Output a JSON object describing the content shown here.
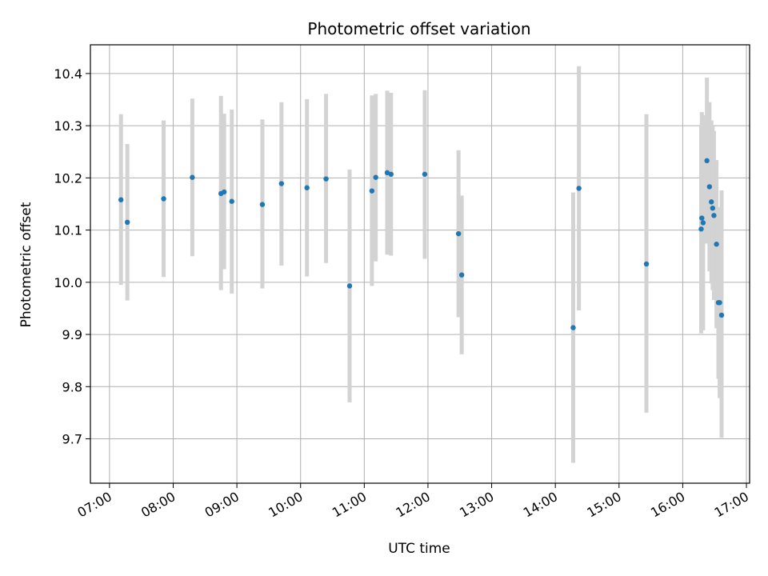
{
  "chart_data": {
    "type": "scatter",
    "title": "Photometric offset variation",
    "xlabel": "UTC time",
    "ylabel": "Photometric offset",
    "x_unit": "hours UTC",
    "xlim": [
      6.7,
      17.05
    ],
    "ylim": [
      9.615,
      10.455
    ],
    "x_ticks": [
      {
        "value": 7,
        "label": "07:00"
      },
      {
        "value": 8,
        "label": "08:00"
      },
      {
        "value": 9,
        "label": "09:00"
      },
      {
        "value": 10,
        "label": "10:00"
      },
      {
        "value": 11,
        "label": "11:00"
      },
      {
        "value": 12,
        "label": "12:00"
      },
      {
        "value": 13,
        "label": "13:00"
      },
      {
        "value": 14,
        "label": "14:00"
      },
      {
        "value": 15,
        "label": "15:00"
      },
      {
        "value": 16,
        "label": "16:00"
      },
      {
        "value": 17,
        "label": "17:00"
      }
    ],
    "y_ticks": [
      {
        "value": 9.7,
        "label": "9.7"
      },
      {
        "value": 9.8,
        "label": "9.8"
      },
      {
        "value": 9.9,
        "label": "9.9"
      },
      {
        "value": 10.0,
        "label": "10.0"
      },
      {
        "value": 10.1,
        "label": "10.1"
      },
      {
        "value": 10.2,
        "label": "10.2"
      },
      {
        "value": 10.3,
        "label": "10.3"
      },
      {
        "value": 10.4,
        "label": "10.4"
      }
    ],
    "grid": true,
    "point_color": "#1f77b4",
    "errorbar_color": "#d3d3d3",
    "points": [
      {
        "x": 7.18,
        "y": 10.158,
        "err_lo": 9.995,
        "err_hi": 10.322
      },
      {
        "x": 7.28,
        "y": 10.115,
        "err_lo": 9.965,
        "err_hi": 10.265
      },
      {
        "x": 7.85,
        "y": 10.16,
        "err_lo": 10.01,
        "err_hi": 10.31
      },
      {
        "x": 8.3,
        "y": 10.201,
        "err_lo": 10.05,
        "err_hi": 10.352
      },
      {
        "x": 8.75,
        "y": 10.17,
        "err_lo": 9.985,
        "err_hi": 10.357
      },
      {
        "x": 8.8,
        "y": 10.173,
        "err_lo": 10.025,
        "err_hi": 10.323
      },
      {
        "x": 8.92,
        "y": 10.155,
        "err_lo": 9.978,
        "err_hi": 10.331
      },
      {
        "x": 9.4,
        "y": 10.149,
        "err_lo": 9.988,
        "err_hi": 10.312
      },
      {
        "x": 9.7,
        "y": 10.189,
        "err_lo": 10.032,
        "err_hi": 10.345
      },
      {
        "x": 10.1,
        "y": 10.181,
        "err_lo": 10.011,
        "err_hi": 10.351
      },
      {
        "x": 10.4,
        "y": 10.198,
        "err_lo": 10.037,
        "err_hi": 10.361
      },
      {
        "x": 10.77,
        "y": 9.993,
        "err_lo": 9.77,
        "err_hi": 10.216
      },
      {
        "x": 11.12,
        "y": 10.175,
        "err_lo": 9.993,
        "err_hi": 10.358
      },
      {
        "x": 11.18,
        "y": 10.201,
        "err_lo": 10.04,
        "err_hi": 10.361
      },
      {
        "x": 11.36,
        "y": 10.21,
        "err_lo": 10.053,
        "err_hi": 10.367
      },
      {
        "x": 11.42,
        "y": 10.207,
        "err_lo": 10.051,
        "err_hi": 10.363
      },
      {
        "x": 11.95,
        "y": 10.207,
        "err_lo": 10.045,
        "err_hi": 10.368
      },
      {
        "x": 12.48,
        "y": 10.093,
        "err_lo": 9.933,
        "err_hi": 10.253
      },
      {
        "x": 12.53,
        "y": 10.014,
        "err_lo": 9.862,
        "err_hi": 10.166
      },
      {
        "x": 14.28,
        "y": 9.913,
        "err_lo": 9.654,
        "err_hi": 10.172
      },
      {
        "x": 14.37,
        "y": 10.18,
        "err_lo": 9.946,
        "err_hi": 10.414
      },
      {
        "x": 15.43,
        "y": 10.035,
        "err_lo": 9.75,
        "err_hi": 10.322
      },
      {
        "x": 16.29,
        "y": 10.102,
        "err_lo": 9.902,
        "err_hi": 10.302
      },
      {
        "x": 16.3,
        "y": 10.123,
        "err_lo": 9.92,
        "err_hi": 10.326
      },
      {
        "x": 16.32,
        "y": 10.114,
        "err_lo": 9.908,
        "err_hi": 10.32
      },
      {
        "x": 16.38,
        "y": 10.233,
        "err_lo": 10.074,
        "err_hi": 10.392
      },
      {
        "x": 16.42,
        "y": 10.183,
        "err_lo": 10.021,
        "err_hi": 10.345
      },
      {
        "x": 16.45,
        "y": 10.154,
        "err_lo": 9.998,
        "err_hi": 10.31
      },
      {
        "x": 16.47,
        "y": 10.142,
        "err_lo": 9.985,
        "err_hi": 10.299
      },
      {
        "x": 16.49,
        "y": 10.128,
        "err_lo": 9.966,
        "err_hi": 10.29
      },
      {
        "x": 16.53,
        "y": 10.073,
        "err_lo": 9.912,
        "err_hi": 10.234
      },
      {
        "x": 16.56,
        "y": 9.961,
        "err_lo": 9.815,
        "err_hi": 10.108
      },
      {
        "x": 16.58,
        "y": 9.961,
        "err_lo": 9.778,
        "err_hi": 10.144
      },
      {
        "x": 16.61,
        "y": 9.937,
        "err_lo": 9.702,
        "err_hi": 10.176
      }
    ]
  }
}
